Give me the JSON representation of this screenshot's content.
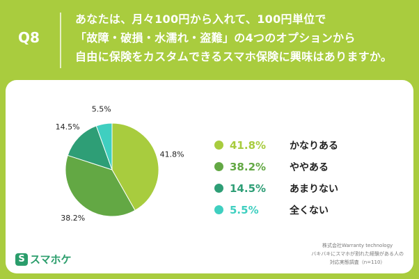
{
  "header": {
    "q_label": "Q8",
    "lines": [
      "あなたは、月々100円から入れて、100円単位で",
      "「故障・破損・水濡れ・盗難」の4つのオプションから",
      "自由に保険をカスタムできるスマホ保険に興味はありますか。"
    ]
  },
  "chart_data": {
    "type": "pie",
    "categories": [
      "かなりある",
      "ややある",
      "あまりない",
      "全くない"
    ],
    "values": [
      41.8,
      38.2,
      14.5,
      5.5
    ],
    "value_labels": [
      "41.8%",
      "38.2%",
      "14.5%",
      "5.5%"
    ],
    "colors": [
      "#a8cc3e",
      "#63a844",
      "#2e9e76",
      "#3fcfc0"
    ],
    "start": "top",
    "direction": "clockwise",
    "legend_position": "right"
  },
  "footer": {
    "note_lines": [
      "株式会社Warranty technology",
      "バキバキにスマホが割れた経験がある人の",
      "対応実態調査（n=110）"
    ],
    "logo_mark": "S",
    "logo_text": "スマホケ"
  }
}
